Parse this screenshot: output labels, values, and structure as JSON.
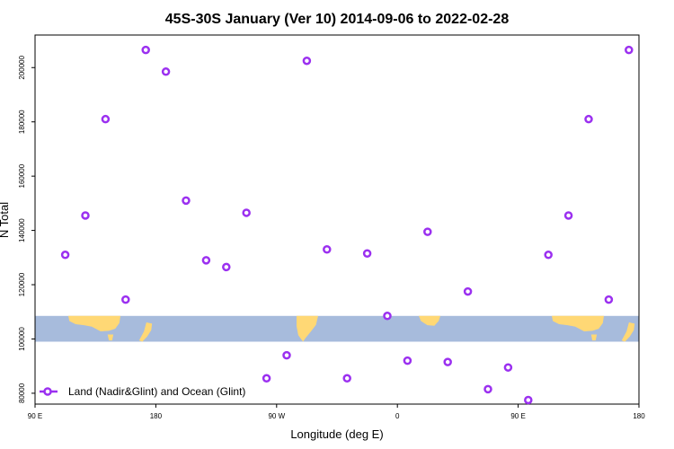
{
  "chart_data": {
    "type": "scatter",
    "title": "45S-30S January (Ver 10)   2014-09-06 to 2022-02-28",
    "xlabel": "Longitude (deg E)",
    "ylabel": "N Total",
    "x_ticks": [
      {
        "value": 90,
        "label": "90 E"
      },
      {
        "value": 180,
        "label": "180"
      },
      {
        "value": 270,
        "label": "90 W"
      },
      {
        "value": 360,
        "label": "0"
      },
      {
        "value": 450,
        "label": "90 E"
      },
      {
        "value": 540,
        "label": "180"
      }
    ],
    "y_ticks": [
      80000,
      100000,
      120000,
      140000,
      160000,
      180000,
      200000
    ],
    "xlim": [
      90,
      540
    ],
    "ylim": [
      76000,
      212000
    ],
    "grid": false,
    "legend_position": "bottom-left",
    "map_band": {
      "y_range": [
        99000,
        108500
      ]
    },
    "colors": {
      "marker": "#9b30f0",
      "ocean": "#a7bbdc",
      "land": "#ffd875"
    },
    "series": [
      {
        "name": "Land (Nadir&Glint) and Ocean (Glint)",
        "color": "#9b30f0",
        "points": [
          {
            "x": 112.5,
            "y": 131000
          },
          {
            "x": 127.5,
            "y": 145500
          },
          {
            "x": 142.5,
            "y": 181000
          },
          {
            "x": 157.5,
            "y": 114500
          },
          {
            "x": 172.5,
            "y": 206500
          },
          {
            "x": 187.5,
            "y": 198500
          },
          {
            "x": 202.5,
            "y": 151000
          },
          {
            "x": 217.5,
            "y": 129000
          },
          {
            "x": 232.5,
            "y": 126500
          },
          {
            "x": 247.5,
            "y": 146500
          },
          {
            "x": 262.5,
            "y": 85500
          },
          {
            "x": 277.5,
            "y": 94000
          },
          {
            "x": 292.5,
            "y": 202500
          },
          {
            "x": 307.5,
            "y": 133000
          },
          {
            "x": 322.5,
            "y": 85500
          },
          {
            "x": 337.5,
            "y": 131500
          },
          {
            "x": 352.5,
            "y": 108500
          },
          {
            "x": 367.5,
            "y": 92000
          },
          {
            "x": 382.5,
            "y": 139500
          },
          {
            "x": 397.5,
            "y": 91500
          },
          {
            "x": 412.5,
            "y": 117500
          },
          {
            "x": 427.5,
            "y": 81500
          },
          {
            "x": 442.5,
            "y": 89500
          },
          {
            "x": 457.5,
            "y": 77500
          },
          {
            "x": 472.5,
            "y": 131000
          },
          {
            "x": 487.5,
            "y": 145500
          },
          {
            "x": 502.5,
            "y": 181000
          },
          {
            "x": 517.5,
            "y": 114500
          },
          {
            "x": 532.5,
            "y": 206500
          }
        ]
      }
    ]
  }
}
